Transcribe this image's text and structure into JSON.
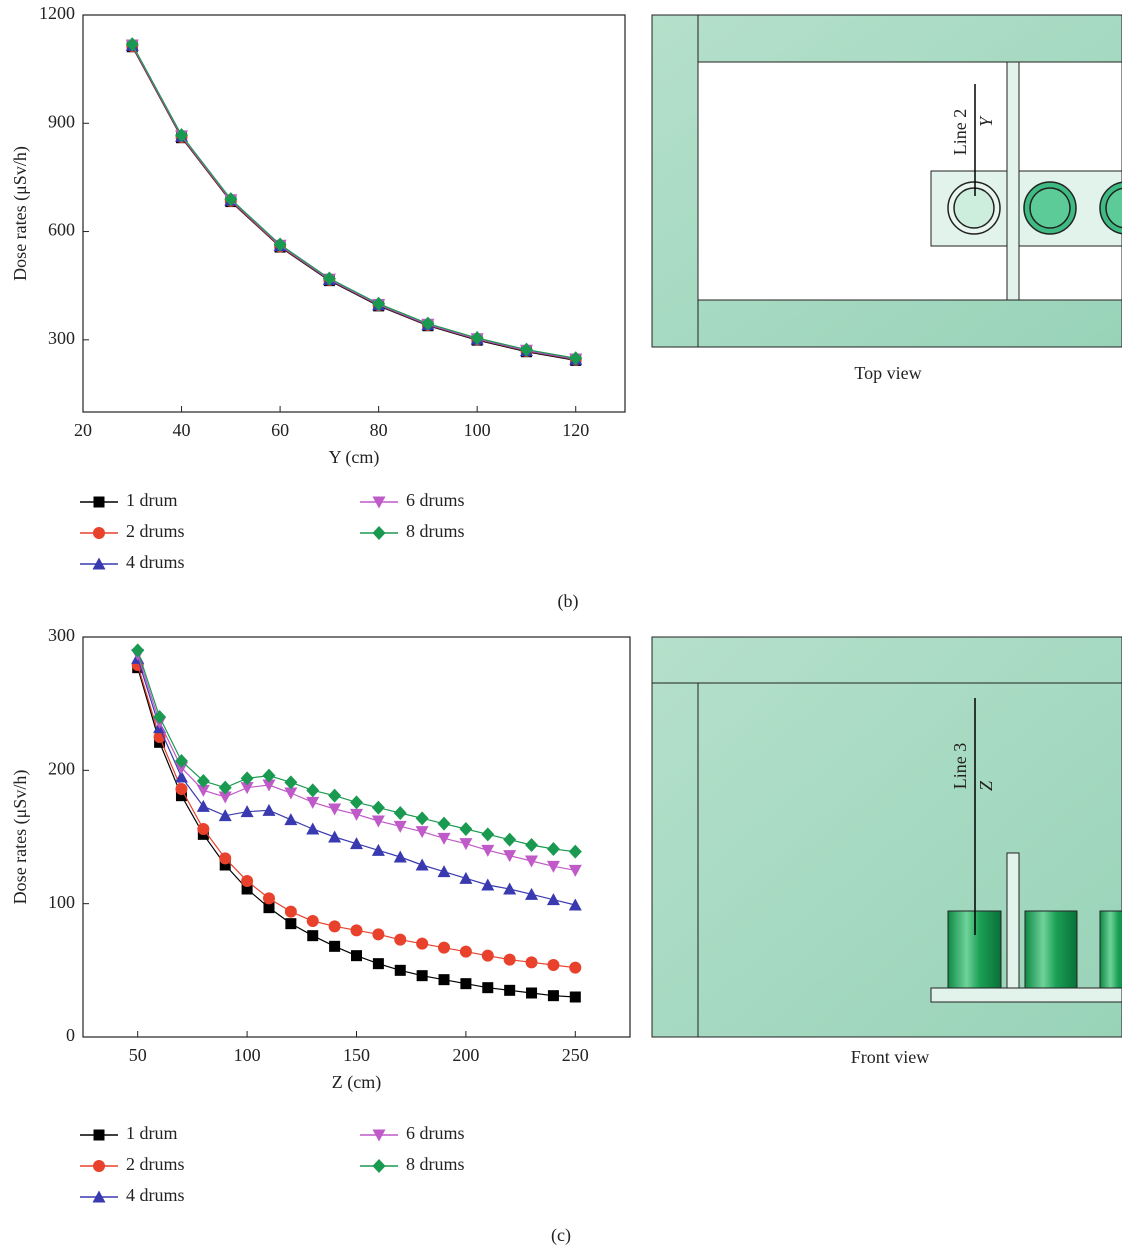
{
  "chart_data": [
    {
      "type": "line",
      "x_label": "Y (cm)",
      "y_label": "Dose rates (μSv/h)",
      "x": [
        30,
        40,
        50,
        60,
        70,
        80,
        90,
        100,
        110,
        120
      ],
      "xlim": [
        20,
        130
      ],
      "xticks": [
        20,
        40,
        60,
        80,
        100,
        120
      ],
      "ylim": [
        100,
        1200
      ],
      "yticks": [
        300,
        600,
        900,
        1200
      ],
      "series": [
        {
          "name": "1 drum",
          "color": "#000000",
          "marker": "square",
          "values": [
            1112,
            860,
            683,
            557,
            464,
            394,
            339,
            299,
            267,
            243
          ]
        },
        {
          "name": "2 drums",
          "color": "#e8412c",
          "marker": "circle",
          "values": [
            1114,
            862,
            685,
            559,
            466,
            396,
            341,
            301,
            269,
            245
          ]
        },
        {
          "name": "4 drums",
          "color": "#3a3ab0",
          "marker": "triangle-up",
          "values": [
            1116,
            864,
            687,
            561,
            467,
            397,
            342,
            302,
            270,
            246
          ]
        },
        {
          "name": "6 drums",
          "color": "#c05ac8",
          "marker": "triangle-down",
          "values": [
            1117,
            865,
            688,
            562,
            468,
            398,
            343,
            303,
            271,
            247
          ]
        },
        {
          "name": "8 drums",
          "color": "#1a9a50",
          "marker": "diamond",
          "values": [
            1119,
            867,
            690,
            564,
            470,
            400,
            345,
            305,
            273,
            249
          ]
        }
      ]
    },
    {
      "type": "line",
      "x_label": "Z (cm)",
      "y_label": "Dose rates (μSv/h)",
      "x": [
        50,
        60,
        70,
        80,
        90,
        100,
        110,
        120,
        130,
        140,
        150,
        160,
        170,
        180,
        190,
        200,
        210,
        220,
        230,
        240,
        250
      ],
      "xlim": [
        25,
        275
      ],
      "xticks": [
        50,
        100,
        150,
        200,
        250
      ],
      "ylim": [
        0,
        300
      ],
      "yticks": [
        0,
        100,
        200,
        300
      ],
      "series": [
        {
          "name": "1 drum",
          "color": "#000000",
          "marker": "square",
          "values": [
            277,
            221,
            181,
            152,
            129,
            111,
            97,
            85,
            76,
            68,
            61,
            55,
            50,
            46,
            43,
            40,
            37,
            35,
            33,
            31,
            30
          ]
        },
        {
          "name": "2 drums",
          "color": "#e8412c",
          "marker": "circle",
          "values": [
            279,
            225,
            186,
            156,
            134,
            117,
            104,
            94,
            87,
            83,
            80,
            77,
            73,
            70,
            67,
            64,
            61,
            58,
            56,
            54,
            52
          ]
        },
        {
          "name": "4 drums",
          "color": "#3a3ab0",
          "marker": "triangle-up",
          "values": [
            284,
            232,
            195,
            173,
            166,
            169,
            170,
            163,
            156,
            150,
            145,
            140,
            135,
            129,
            124,
            119,
            114,
            111,
            107,
            103,
            99
          ]
        },
        {
          "name": "6 drums",
          "color": "#c05ac8",
          "marker": "triangle-down",
          "values": [
            287,
            236,
            202,
            185,
            180,
            187,
            189,
            183,
            176,
            171,
            167,
            162,
            158,
            154,
            149,
            145,
            140,
            136,
            132,
            128,
            125
          ]
        },
        {
          "name": "8 drums",
          "color": "#1a9a50",
          "marker": "diamond",
          "values": [
            290,
            240,
            207,
            192,
            187,
            194,
            196,
            191,
            185,
            181,
            176,
            172,
            168,
            164,
            160,
            156,
            152,
            148,
            144,
            141,
            139
          ]
        }
      ]
    }
  ],
  "diagrams": [
    {
      "line_label": "Line 2",
      "axis_label": "Y",
      "caption": "Top view"
    },
    {
      "line_label": "Line 3",
      "axis_label": "Z",
      "caption": "Front view"
    }
  ],
  "panel_labels": [
    "(b)",
    "(c)"
  ]
}
